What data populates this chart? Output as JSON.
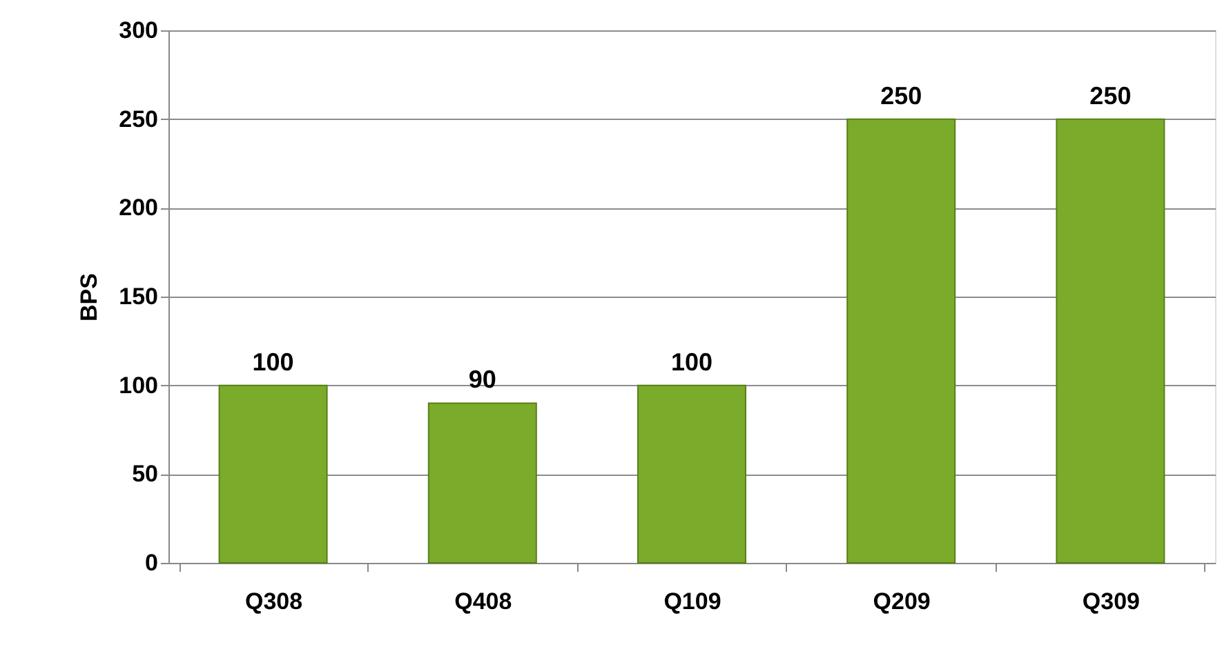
{
  "chart_data": {
    "type": "bar",
    "ylabel": "BPS",
    "categories": [
      "Q308",
      "Q408",
      "Q109",
      "Q209",
      "Q309"
    ],
    "values": [
      100,
      90,
      100,
      250,
      250
    ],
    "color": "#7aab2a",
    "ylim": [
      0,
      300
    ],
    "yticks": [
      0,
      50,
      100,
      150,
      200,
      250,
      300
    ],
    "grid": "y",
    "data_labels": true
  }
}
